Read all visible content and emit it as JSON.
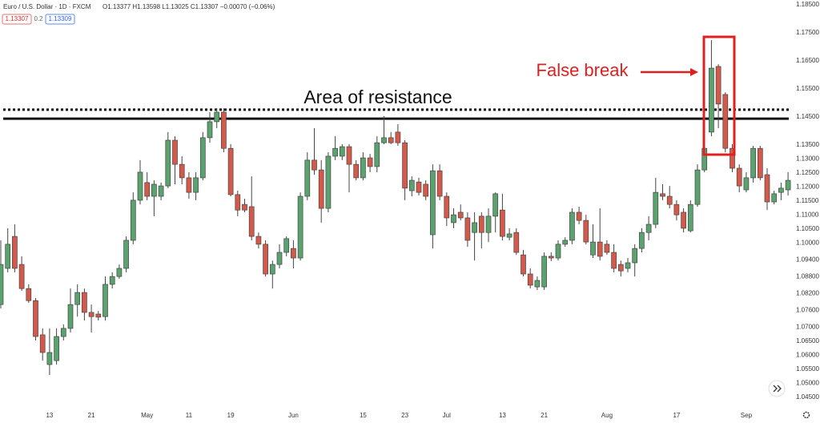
{
  "header": {
    "symbol": "Euro / U.S. Dollar · 1D · FXCM",
    "ohlc": "O1.13377 H1.13598 L1.13025 C1.13307 −0.00070 (−0.06%)",
    "bid": "1.13307",
    "spread": "0.2",
    "ask": "1.13309"
  },
  "chart_data": {
    "type": "candlestick",
    "up_color": "#5aa36e",
    "down_color": "#d35a4a",
    "grid": false,
    "annotation": "Area of resistance",
    "break_label": "False break",
    "levels": [
      {
        "value": 1.1476,
        "style": "dotted"
      },
      {
        "value": 1.1444,
        "style": "solid"
      }
    ],
    "categories": [
      null,
      null,
      null,
      null,
      null,
      null,
      null,
      "13",
      null,
      null,
      null,
      null,
      null,
      "21",
      null,
      null,
      null,
      null,
      null,
      null,
      null,
      "May",
      null,
      null,
      null,
      null,
      null,
      "11",
      null,
      null,
      null,
      null,
      null,
      "19",
      null,
      null,
      null,
      null,
      null,
      null,
      null,
      null,
      "Jun",
      null,
      null,
      null,
      null,
      null,
      null,
      null,
      null,
      null,
      "15",
      null,
      null,
      null,
      null,
      null,
      "23",
      null,
      null,
      null,
      null,
      null,
      "Jul",
      null,
      null,
      null,
      null,
      null,
      null,
      null,
      "13",
      null,
      null,
      null,
      null,
      null,
      "21",
      null,
      null,
      null,
      null,
      null,
      null,
      null,
      null,
      "Aug",
      null,
      null,
      null,
      null,
      null,
      null,
      null,
      null,
      null,
      "17",
      null,
      null,
      null,
      null,
      null,
      null,
      null,
      null,
      null,
      "Sep",
      null,
      null,
      null,
      null,
      null,
      null
    ],
    "open": [
      1.0781,
      1.091,
      1.1024,
      1.0924,
      1.0838,
      1.0795,
      1.0673,
      1.0567,
      1.0581,
      1.0667,
      1.0696,
      1.0781,
      1.0824,
      1.0753,
      1.0747,
      1.0738,
      1.0853,
      1.0881,
      1.091,
      1.101,
      1.1153,
      1.1216,
      1.1167,
      1.1167,
      1.1204,
      1.1367,
      1.1281,
      1.1233,
      1.1181,
      1.1233,
      1.1376,
      1.1433,
      1.1467,
      1.1338,
      1.1173,
      1.1138,
      1.113,
      1.1024,
      1.0996,
      1.089,
      1.0924,
      1.0967,
      1.0981,
      1.0947,
      1.1167,
      1.1296,
      1.1261,
      1.1124,
      1.131,
      1.131,
      1.1344,
      1.1281,
      1.1233,
      1.1304,
      1.1273,
      1.1358,
      1.1376,
      1.1396,
      1.1358,
      1.1187,
      1.1218,
      1.121,
      1.103,
      1.1258,
      1.1167,
      1.1073,
      1.111,
      1.109,
      1.1038,
      1.1096,
      1.1038,
      1.1096,
      1.1118,
      1.1021,
      1.1038,
      1.0958,
      1.089,
      1.0844,
      1.0844,
      1.0953,
      1.0947,
      1.0996,
      1.101,
      1.111,
      1.1081,
      1.0958,
      1.1004,
      1.0996,
      1.0967,
      1.0924,
      1.091,
      1.093,
      1.0981,
      1.1038,
      1.1067,
      1.1176,
      1.1167,
      1.1138,
      1.111,
      1.1044,
      1.1138,
      1.1261,
      1.1396,
      1.163,
      1.153,
      1.1338,
      1.1267,
      1.119,
      1.1233,
      1.1338,
      1.1244,
      1.1147,
      1.1181,
      1.119
    ],
    "high": [
      1.101,
      1.1053,
      1.1067,
      1.0953,
      1.0853,
      1.0804,
      1.0696,
      1.0696,
      1.0696,
      1.071,
      1.0838,
      1.0853,
      1.0838,
      1.0781,
      1.0758,
      1.0881,
      1.0896,
      1.0924,
      1.1024,
      1.1181,
      1.1296,
      1.1253,
      1.1224,
      1.1216,
      1.1396,
      1.1381,
      1.131,
      1.1253,
      1.1253,
      1.1396,
      1.1467,
      1.1481,
      1.1481,
      1.1353,
      1.1187,
      1.1158,
      1.1238,
      1.1038,
      1.101,
      1.0938,
      1.0996,
      1.1024,
      1.101,
      1.1181,
      1.1324,
      1.141,
      1.1296,
      1.1324,
      1.1381,
      1.1353,
      1.1353,
      1.1296,
      1.1324,
      1.1318,
      1.1381,
      1.1453,
      1.1396,
      1.1424,
      1.1367,
      1.1238,
      1.1233,
      1.1224,
      1.1281,
      1.1281,
      1.1181,
      1.1124,
      1.1138,
      1.111,
      1.111,
      1.111,
      1.1124,
      1.1181,
      1.1176,
      1.1053,
      1.1053,
      1.0976,
      1.091,
      1.0881,
      1.0967,
      1.0967,
      1.101,
      1.1021,
      1.1124,
      1.113,
      1.1101,
      1.1067,
      1.1124,
      1.101,
      1.0996,
      1.0938,
      1.0947,
      1.0996,
      1.1053,
      1.1096,
      1.1233,
      1.121,
      1.1204,
      1.1153,
      1.1124,
      1.1153,
      1.1281,
      1.1367,
      1.1724,
      1.1638,
      1.1538,
      1.1353,
      1.1281,
      1.1253,
      1.1347,
      1.1347,
      1.1267,
      1.1187,
      1.1216,
      1.1253
    ],
    "low": [
      1.0767,
      1.0896,
      1.0896,
      1.083,
      1.0787,
      1.0653,
      1.0581,
      1.053,
      1.0567,
      1.0653,
      1.0681,
      1.0738,
      1.0724,
      1.0681,
      1.0724,
      1.0724,
      1.0838,
      1.0873,
      1.0896,
      1.0996,
      1.1138,
      1.1153,
      1.1096,
      1.1153,
      1.1196,
      1.121,
      1.121,
      1.1158,
      1.1153,
      1.1224,
      1.1358,
      1.141,
      1.1324,
      1.1167,
      1.1096,
      1.111,
      1.101,
      1.0981,
      1.0881,
      1.0838,
      1.091,
      1.0953,
      1.091,
      1.0938,
      1.1153,
      1.1244,
      1.1073,
      1.111,
      1.1296,
      1.1296,
      1.1181,
      1.1224,
      1.1224,
      1.1253,
      1.1253,
      1.1353,
      1.1353,
      1.1347,
      1.1153,
      1.1167,
      1.117,
      1.1153,
      1.0981,
      1.1153,
      1.1061,
      1.1053,
      1.1081,
      1.0987,
      1.0938,
      1.0981,
      1.1004,
      1.1038,
      1.101,
      1.101,
      1.0958,
      1.0881,
      1.0838,
      1.0833,
      1.0833,
      1.0936,
      1.0938,
      1.0987,
      1.0996,
      1.1067,
      1.0996,
      1.0947,
      1.0938,
      1.0958,
      1.0896,
      1.0881,
      1.0896,
      1.0881,
      1.0967,
      1.101,
      1.1053,
      1.1153,
      1.1124,
      1.1081,
      1.1038,
      1.1038,
      1.113,
      1.1253,
      1.1381,
      1.141,
      1.1324,
      1.1253,
      1.1181,
      1.1181,
      1.1216,
      1.1224,
      1.1118,
      1.1138,
      1.1153,
      1.117
    ],
    "close": [
      1.0924,
      1.0996,
      1.091,
      1.0838,
      1.0795,
      1.0667,
      1.061,
      1.061,
      1.0667,
      1.0696,
      1.0781,
      1.0824,
      1.0753,
      1.0738,
      1.0736,
      1.0853,
      1.0881,
      1.091,
      1.101,
      1.1153,
      1.1253,
      1.1167,
      1.121,
      1.1204,
      1.1367,
      1.1281,
      1.1233,
      1.1181,
      1.1233,
      1.1376,
      1.1433,
      1.1467,
      1.1338,
      1.1173,
      1.1118,
      1.1118,
      1.1024,
      1.0996,
      1.089,
      1.0924,
      1.0967,
      1.1016,
      1.0947,
      1.1167,
      1.1296,
      1.1261,
      1.1124,
      1.131,
      1.1338,
      1.1344,
      1.1281,
      1.1233,
      1.1304,
      1.1273,
      1.1358,
      1.1376,
      1.1358,
      1.1358,
      1.1196,
      1.1224,
      1.1181,
      1.1167,
      1.1258,
      1.1167,
      1.109,
      1.1101,
      1.109,
      1.101,
      1.1073,
      1.1038,
      1.1096,
      1.1176,
      1.1024,
      1.1033,
      1.0967,
      1.089,
      1.085,
      1.0867,
      1.0953,
      1.0947,
      1.0996,
      1.101,
      1.111,
      1.1081,
      1.1004,
      1.1004,
      1.0953,
      1.0967,
      1.091,
      1.0901,
      1.093,
      1.0981,
      1.1038,
      1.1067,
      1.1181,
      1.1167,
      1.1138,
      1.1101,
      1.1053,
      1.1138,
      1.1261,
      1.1338,
      1.1624,
      1.1496,
      1.1338,
      1.1267,
      1.1204,
      1.1233,
      1.1338,
      1.1233,
      1.1147,
      1.1176,
      1.1196,
      1.1224
    ],
    "ylim": [
      1.041,
      1.1867
    ],
    "yticks": [
      {
        "value": 1.185,
        "label": "1.18500"
      },
      {
        "value": 1.175,
        "label": "1.17500"
      },
      {
        "value": 1.165,
        "label": "1.16500"
      },
      {
        "value": 1.155,
        "label": "1.15500"
      },
      {
        "value": 1.145,
        "label": "1.14500"
      },
      {
        "value": 1.135,
        "label": "1.13500"
      },
      {
        "value": 1.13,
        "label": "1.13000"
      },
      {
        "value": 1.125,
        "label": "1.12500"
      },
      {
        "value": 1.12,
        "label": "1.12000"
      },
      {
        "value": 1.115,
        "label": "1.11500"
      },
      {
        "value": 1.11,
        "label": "1.11000"
      },
      {
        "value": 1.105,
        "label": "1.10500"
      },
      {
        "value": 1.1,
        "label": "1.10000"
      },
      {
        "value": 1.094,
        "label": "1.09400"
      },
      {
        "value": 1.088,
        "label": "1.08800"
      },
      {
        "value": 1.082,
        "label": "1.08200"
      },
      {
        "value": 1.076,
        "label": "1.07600"
      },
      {
        "value": 1.07,
        "label": "1.07000"
      },
      {
        "value": 1.065,
        "label": "1.06500"
      },
      {
        "value": 1.06,
        "label": "1.06000"
      },
      {
        "value": 1.055,
        "label": "1.05500"
      },
      {
        "value": 1.05,
        "label": "1.05000"
      },
      {
        "value": 1.045,
        "label": "1.04500"
      }
    ]
  }
}
